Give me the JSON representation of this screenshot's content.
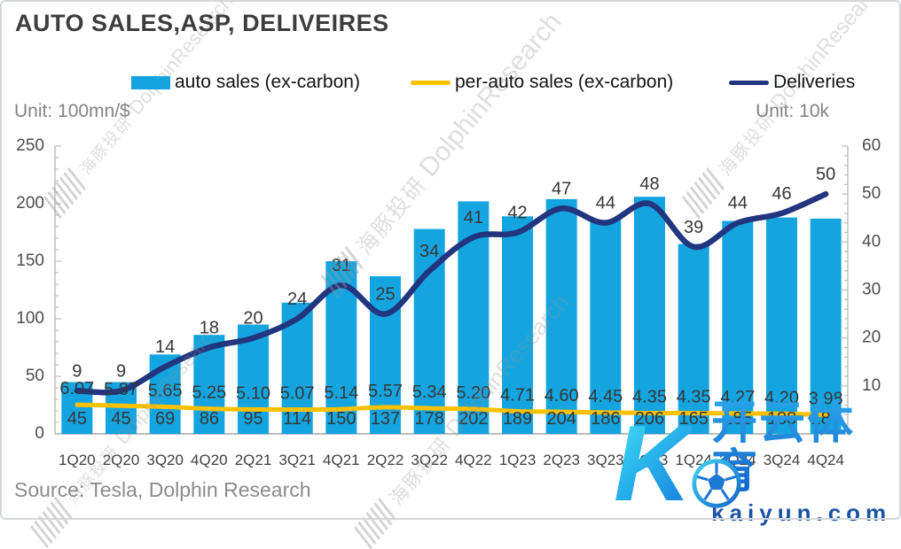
{
  "title": "AUTO SALES,ASP, DELIVEIRES",
  "units": {
    "left": "Unit: 100mn/$",
    "right": "Unit: 10k"
  },
  "source": "Source: Tesla, Dolphin Research",
  "legend": {
    "items": [
      {
        "label": "auto sales (ex-carbon)",
        "color": "#14a5e0"
      },
      {
        "label": "per-auto sales (ex-carbon)",
        "color": "#ffc000"
      },
      {
        "label": "Deliveries",
        "color": "#22357f"
      }
    ]
  },
  "watermark": {
    "cn": "海豚投研",
    "en": "DolphinResearch"
  },
  "logo": {
    "monogram": "K",
    "brand": "开云体育",
    "domain": "kaiyun.com"
  },
  "colors": {
    "bar": "#14a5e0",
    "asp_line": "#ffc000",
    "deliveries_line": "#22357f",
    "axis": "#bfbfbf",
    "axis_text": "#4d4d4d",
    "data_label": "#373737",
    "x_label": "#3f3f3f"
  },
  "chart_data": {
    "type": "bar",
    "combo": "bar + 2 smoothed lines",
    "title": "AUTO SALES,ASP, DELIVEIRES",
    "categories": [
      "1Q20",
      "2Q20",
      "3Q20",
      "4Q20",
      "2Q21",
      "3Q21",
      "4Q21",
      "2Q22",
      "3Q22",
      "4Q22",
      "1Q23",
      "2Q23",
      "3Q23",
      "4Q23",
      "1Q24",
      "2Q24",
      "3Q24",
      "4Q24"
    ],
    "series": [
      {
        "name": "auto sales (ex-carbon)",
        "type": "bar",
        "axis": "left",
        "color": "#14a5e0",
        "values": [
          45,
          45,
          69,
          86,
          95,
          114,
          150,
          137,
          178,
          202,
          189,
          204,
          186,
          206,
          165,
          185,
          188,
          187
        ],
        "labels": [
          "45",
          "45",
          "69",
          "86",
          "95",
          "114",
          "150",
          "137",
          "178",
          "202",
          "189",
          "204",
          "186",
          "206",
          "165",
          "185",
          "188",
          "187"
        ]
      },
      {
        "name": "per-auto sales (ex-carbon)",
        "type": "line",
        "axis": "right",
        "color": "#ffc000",
        "values": [
          6.07,
          5.87,
          5.65,
          5.25,
          5.1,
          5.07,
          5.14,
          5.57,
          5.34,
          5.2,
          4.71,
          4.6,
          4.45,
          4.35,
          4.35,
          4.27,
          4.2,
          3.98
        ],
        "labels": [
          "6.07",
          "5.87",
          "5.65",
          "5.25",
          "5.10",
          "5.07",
          "5.14",
          "5.57",
          "5.34",
          "5.20",
          "4.71",
          "4.60",
          "4.45",
          "4.35",
          "4.35",
          "4.27",
          "4.20",
          "3.98"
        ]
      },
      {
        "name": "Deliveries",
        "type": "line",
        "axis": "right",
        "color": "#22357f",
        "values": [
          9,
          9,
          14,
          18,
          20,
          24,
          31,
          25,
          34,
          41,
          42,
          47,
          44,
          48,
          39,
          44,
          46,
          50
        ],
        "labels": [
          "9",
          "9",
          "14",
          "18",
          "20",
          "24",
          "31",
          "25",
          "34",
          "41",
          "42",
          "47",
          "44",
          "48",
          "39",
          "44",
          "46",
          "50"
        ]
      }
    ],
    "left_axis": {
      "min": 0,
      "max": 250,
      "step": 50,
      "minor_step": 10,
      "unit": "100mn/$"
    },
    "right_axis": {
      "min": 0,
      "max": 60,
      "step": 10,
      "minor_step": 2,
      "unit": "10k"
    },
    "grid": false,
    "legend_position": "top"
  }
}
